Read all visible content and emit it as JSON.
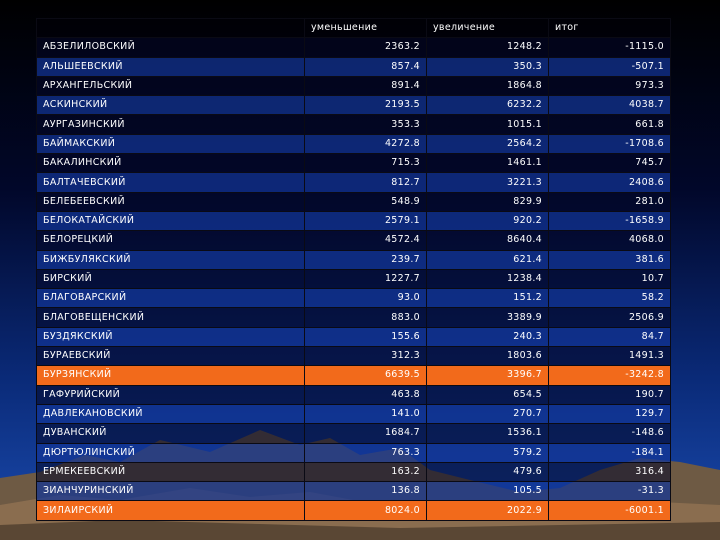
{
  "header": {
    "col1": "",
    "col2": "уменьшение",
    "col3": "увеличение",
    "col4": "итог"
  },
  "rows": [
    {
      "name": "АБЗЕЛИЛОВСКИЙ",
      "dec": "2363.2",
      "inc": "1248.2",
      "total": "-1115.0",
      "highlight": false
    },
    {
      "name": "АЛЬШЕЕВСКИЙ",
      "dec": "857.4",
      "inc": "350.3",
      "total": "-507.1",
      "highlight": false
    },
    {
      "name": "АРХАНГЕЛЬСКИЙ",
      "dec": "891.4",
      "inc": "1864.8",
      "total": "973.3",
      "highlight": false
    },
    {
      "name": "АСКИНСКИЙ",
      "dec": "2193.5",
      "inc": "6232.2",
      "total": "4038.7",
      "highlight": false
    },
    {
      "name": "АУРГАЗИНСКИЙ",
      "dec": "353.3",
      "inc": "1015.1",
      "total": "661.8",
      "highlight": false
    },
    {
      "name": "БАЙМАКСКИЙ",
      "dec": "4272.8",
      "inc": "2564.2",
      "total": "-1708.6",
      "highlight": false
    },
    {
      "name": "БАКАЛИНСКИЙ",
      "dec": "715.3",
      "inc": "1461.1",
      "total": "745.7",
      "highlight": false
    },
    {
      "name": "БАЛТАЧЕВСКИЙ",
      "dec": "812.7",
      "inc": "3221.3",
      "total": "2408.6",
      "highlight": false
    },
    {
      "name": "БЕЛЕБЕЕВСКИЙ",
      "dec": "548.9",
      "inc": "829.9",
      "total": "281.0",
      "highlight": false
    },
    {
      "name": "БЕЛОКАТАЙСКИЙ",
      "dec": "2579.1",
      "inc": "920.2",
      "total": "-1658.9",
      "highlight": false
    },
    {
      "name": "БЕЛОРЕЦКИЙ",
      "dec": "4572.4",
      "inc": "8640.4",
      "total": "4068.0",
      "highlight": false
    },
    {
      "name": "БИЖБУЛЯКСКИЙ",
      "dec": "239.7",
      "inc": "621.4",
      "total": "381.6",
      "highlight": false
    },
    {
      "name": "БИРСКИЙ",
      "dec": "1227.7",
      "inc": "1238.4",
      "total": "10.7",
      "highlight": false
    },
    {
      "name": "БЛАГОВАРСКИЙ",
      "dec": "93.0",
      "inc": "151.2",
      "total": "58.2",
      "highlight": false
    },
    {
      "name": "БЛАГОВЕЩЕНСКИЙ",
      "dec": "883.0",
      "inc": "3389.9",
      "total": "2506.9",
      "highlight": false
    },
    {
      "name": "БУЗДЯКСКИЙ",
      "dec": "155.6",
      "inc": "240.3",
      "total": "84.7",
      "highlight": false
    },
    {
      "name": "БУРАЕВСКИЙ",
      "dec": "312.3",
      "inc": "1803.6",
      "total": "1491.3",
      "highlight": false
    },
    {
      "name": "БУРЗЯНСКИЙ",
      "dec": "6639.5",
      "inc": "3396.7",
      "total": "-3242.8",
      "highlight": true
    },
    {
      "name": "ГАФУРИЙСКИЙ",
      "dec": "463.8",
      "inc": "654.5",
      "total": "190.7",
      "highlight": false
    },
    {
      "name": "ДАВЛЕКАНОВСКИЙ",
      "dec": "141.0",
      "inc": "270.7",
      "total": "129.7",
      "highlight": false
    },
    {
      "name": "ДУВАНСКИЙ",
      "dec": "1684.7",
      "inc": "1536.1",
      "total": "-148.6",
      "highlight": false
    },
    {
      "name": "ДЮРТЮЛИНСКИЙ",
      "dec": "763.3",
      "inc": "579.2",
      "total": "-184.1",
      "highlight": false
    },
    {
      "name": "ЕРМЕКЕЕВСКИЙ",
      "dec": "163.2",
      "inc": "479.6",
      "total": "316.4",
      "highlight": false
    },
    {
      "name": "ЗИАНЧУРИНСКИЙ",
      "dec": "136.8",
      "inc": "105.5",
      "total": "-31.3",
      "highlight": false
    },
    {
      "name": "ЗИЛАИРСКИЙ",
      "dec": "8024.0",
      "inc": "2022.9",
      "total": "-6001.1",
      "highlight": true
    }
  ],
  "colors": {
    "highlight": "#f26a1b",
    "row_blue": "#123496",
    "background_top": "#000000",
    "background_bottom": "#1b4cb0",
    "mountain": "#8a6d4f"
  }
}
